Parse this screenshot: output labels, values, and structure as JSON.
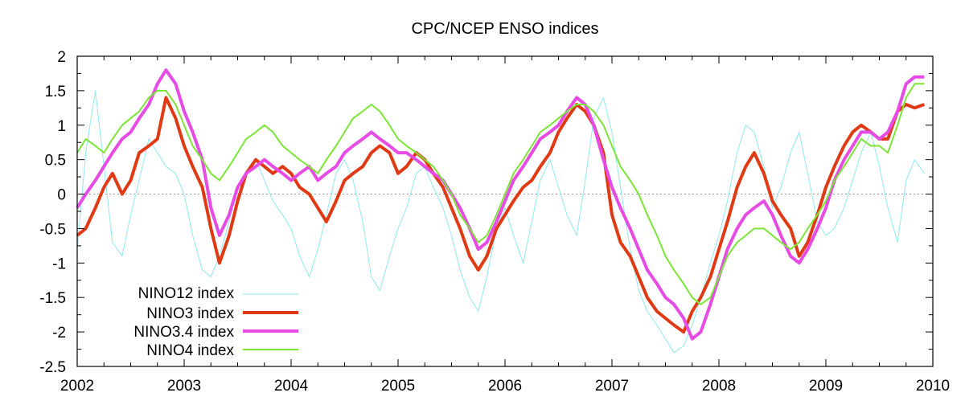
{
  "chart_data": {
    "type": "line",
    "title": "CPC/NCEP ENSO indices",
    "xlabel": "",
    "ylabel": "",
    "xlim": [
      2002.0,
      2010.0
    ],
    "ylim": [
      -2.5,
      2.0
    ],
    "x_ticks": [
      "2002",
      "2003",
      "2004",
      "2005",
      "2006",
      "2007",
      "2008",
      "2009",
      "2010"
    ],
    "y_ticks": [
      "2",
      "1.5",
      "1",
      "0.5",
      "0",
      "-0.5",
      "-1",
      "-1.5",
      "-2",
      "-2.5"
    ],
    "zero_line": true,
    "legend_position": "bottom-left",
    "series": [
      {
        "name": "NINO12 index",
        "color": "#8fe8ee",
        "x": [
          2002.0,
          2002.08,
          2002.17,
          2002.25,
          2002.33,
          2002.42,
          2002.5,
          2002.58,
          2002.67,
          2002.75,
          2002.83,
          2002.92,
          2003.0,
          2003.08,
          2003.17,
          2003.25,
          2003.33,
          2003.42,
          2003.5,
          2003.58,
          2003.67,
          2003.75,
          2003.83,
          2003.92,
          2004.0,
          2004.08,
          2004.17,
          2004.25,
          2004.33,
          2004.42,
          2004.5,
          2004.58,
          2004.67,
          2004.75,
          2004.83,
          2004.92,
          2005.0,
          2005.08,
          2005.17,
          2005.25,
          2005.33,
          2005.42,
          2005.5,
          2005.58,
          2005.67,
          2005.75,
          2005.83,
          2005.92,
          2006.0,
          2006.08,
          2006.17,
          2006.25,
          2006.33,
          2006.42,
          2006.5,
          2006.58,
          2006.67,
          2006.75,
          2006.83,
          2006.92,
          2007.0,
          2007.08,
          2007.17,
          2007.25,
          2007.33,
          2007.42,
          2007.5,
          2007.58,
          2007.67,
          2007.75,
          2007.83,
          2007.92,
          2008.0,
          2008.08,
          2008.17,
          2008.25,
          2008.33,
          2008.42,
          2008.5,
          2008.58,
          2008.67,
          2008.75,
          2008.83,
          2008.92,
          2009.0,
          2009.08,
          2009.17,
          2009.25,
          2009.33,
          2009.42,
          2009.5,
          2009.58,
          2009.67,
          2009.75,
          2009.83,
          2009.92
        ],
        "values": [
          -0.8,
          0.6,
          1.5,
          0.4,
          -0.7,
          -0.9,
          -0.3,
          0.2,
          0.8,
          0.6,
          0.4,
          0.3,
          0.0,
          -0.6,
          -1.1,
          -1.2,
          -0.9,
          -0.4,
          0.1,
          0.3,
          0.5,
          0.2,
          -0.1,
          -0.3,
          -0.5,
          -0.9,
          -1.2,
          -0.8,
          -0.3,
          0.3,
          0.5,
          0.2,
          -0.4,
          -1.2,
          -1.4,
          -0.9,
          -0.5,
          -0.2,
          0.3,
          0.4,
          0.1,
          -0.2,
          -0.6,
          -1.1,
          -1.5,
          -1.7,
          -1.2,
          -0.5,
          -0.2,
          -0.6,
          -1.0,
          -0.4,
          0.2,
          0.5,
          0.1,
          -0.3,
          -0.6,
          0.2,
          1.1,
          1.4,
          0.9,
          0.1,
          -0.8,
          -1.4,
          -1.7,
          -1.9,
          -2.1,
          -2.3,
          -2.2,
          -1.9,
          -1.5,
          -1.0,
          -0.6,
          -0.1,
          0.6,
          1.0,
          0.9,
          0.4,
          -0.2,
          0.1,
          0.6,
          0.9,
          0.3,
          -0.4,
          -0.6,
          -0.5,
          -0.2,
          0.2,
          0.6,
          0.9,
          0.4,
          -0.2,
          -0.7,
          0.2,
          0.5,
          0.3
        ]
      },
      {
        "name": "NINO3 index",
        "color": "#e03a14",
        "x": [
          2002.0,
          2002.08,
          2002.17,
          2002.25,
          2002.33,
          2002.42,
          2002.5,
          2002.58,
          2002.67,
          2002.75,
          2002.83,
          2002.92,
          2003.0,
          2003.08,
          2003.17,
          2003.25,
          2003.33,
          2003.42,
          2003.5,
          2003.58,
          2003.67,
          2003.75,
          2003.83,
          2003.92,
          2004.0,
          2004.08,
          2004.17,
          2004.25,
          2004.33,
          2004.42,
          2004.5,
          2004.58,
          2004.67,
          2004.75,
          2004.83,
          2004.92,
          2005.0,
          2005.08,
          2005.17,
          2005.25,
          2005.33,
          2005.42,
          2005.5,
          2005.58,
          2005.67,
          2005.75,
          2005.83,
          2005.92,
          2006.0,
          2006.08,
          2006.17,
          2006.25,
          2006.33,
          2006.42,
          2006.5,
          2006.58,
          2006.67,
          2006.75,
          2006.83,
          2006.92,
          2007.0,
          2007.08,
          2007.17,
          2007.25,
          2007.33,
          2007.42,
          2007.5,
          2007.58,
          2007.67,
          2007.75,
          2007.83,
          2007.92,
          2008.0,
          2008.08,
          2008.17,
          2008.25,
          2008.33,
          2008.42,
          2008.5,
          2008.58,
          2008.67,
          2008.75,
          2008.83,
          2008.92,
          2009.0,
          2009.08,
          2009.17,
          2009.25,
          2009.33,
          2009.42,
          2009.5,
          2009.58,
          2009.67,
          2009.75,
          2009.83,
          2009.92
        ],
        "values": [
          -0.6,
          -0.5,
          -0.2,
          0.1,
          0.3,
          0.0,
          0.2,
          0.6,
          0.7,
          0.8,
          1.4,
          1.1,
          0.7,
          0.4,
          0.1,
          -0.5,
          -1.0,
          -0.6,
          -0.1,
          0.3,
          0.5,
          0.4,
          0.3,
          0.4,
          0.3,
          0.1,
          0.0,
          -0.2,
          -0.4,
          -0.1,
          0.2,
          0.3,
          0.4,
          0.6,
          0.7,
          0.6,
          0.3,
          0.4,
          0.6,
          0.5,
          0.3,
          0.1,
          -0.2,
          -0.5,
          -0.9,
          -1.1,
          -0.9,
          -0.5,
          -0.3,
          -0.1,
          0.1,
          0.2,
          0.4,
          0.6,
          0.9,
          1.1,
          1.3,
          1.2,
          1.0,
          0.6,
          -0.3,
          -0.7,
          -0.9,
          -1.2,
          -1.5,
          -1.7,
          -1.8,
          -1.9,
          -2.0,
          -1.7,
          -1.5,
          -1.2,
          -0.8,
          -0.4,
          0.1,
          0.4,
          0.6,
          0.3,
          -0.1,
          -0.3,
          -0.5,
          -0.9,
          -0.7,
          -0.3,
          0.1,
          0.4,
          0.7,
          0.9,
          1.0,
          0.9,
          0.8,
          0.8,
          1.2,
          1.3,
          1.25,
          1.3
        ]
      },
      {
        "name": "NINO3.4 index",
        "color": "#e64be3",
        "x": [
          2002.0,
          2002.08,
          2002.17,
          2002.25,
          2002.33,
          2002.42,
          2002.5,
          2002.58,
          2002.67,
          2002.75,
          2002.83,
          2002.92,
          2003.0,
          2003.08,
          2003.17,
          2003.25,
          2003.33,
          2003.42,
          2003.5,
          2003.58,
          2003.67,
          2003.75,
          2003.83,
          2003.92,
          2004.0,
          2004.08,
          2004.17,
          2004.25,
          2004.33,
          2004.42,
          2004.5,
          2004.58,
          2004.67,
          2004.75,
          2004.83,
          2004.92,
          2005.0,
          2005.08,
          2005.17,
          2005.25,
          2005.33,
          2005.42,
          2005.5,
          2005.58,
          2005.67,
          2005.75,
          2005.83,
          2005.92,
          2006.0,
          2006.08,
          2006.17,
          2006.25,
          2006.33,
          2006.42,
          2006.5,
          2006.58,
          2006.67,
          2006.75,
          2006.83,
          2006.92,
          2007.0,
          2007.08,
          2007.17,
          2007.25,
          2007.33,
          2007.42,
          2007.5,
          2007.58,
          2007.67,
          2007.75,
          2007.83,
          2007.92,
          2008.0,
          2008.08,
          2008.17,
          2008.25,
          2008.33,
          2008.42,
          2008.5,
          2008.58,
          2008.67,
          2008.75,
          2008.83,
          2008.92,
          2009.0,
          2009.08,
          2009.17,
          2009.25,
          2009.33,
          2009.42,
          2009.5,
          2009.58,
          2009.67,
          2009.75,
          2009.83,
          2009.92
        ],
        "values": [
          -0.2,
          0.0,
          0.2,
          0.4,
          0.6,
          0.8,
          0.9,
          1.1,
          1.3,
          1.6,
          1.8,
          1.6,
          1.2,
          0.9,
          0.5,
          -0.2,
          -0.6,
          -0.3,
          0.1,
          0.3,
          0.4,
          0.5,
          0.4,
          0.3,
          0.2,
          0.3,
          0.4,
          0.2,
          0.3,
          0.4,
          0.6,
          0.7,
          0.8,
          0.9,
          0.8,
          0.7,
          0.6,
          0.6,
          0.5,
          0.4,
          0.3,
          0.2,
          0.0,
          -0.2,
          -0.5,
          -0.8,
          -0.7,
          -0.4,
          -0.1,
          0.2,
          0.4,
          0.6,
          0.8,
          0.9,
          1.0,
          1.2,
          1.4,
          1.3,
          1.0,
          0.5,
          0.1,
          -0.2,
          -0.5,
          -0.8,
          -1.1,
          -1.3,
          -1.5,
          -1.6,
          -1.8,
          -2.1,
          -2.0,
          -1.6,
          -1.2,
          -0.8,
          -0.5,
          -0.3,
          -0.2,
          -0.1,
          -0.3,
          -0.6,
          -0.9,
          -1.0,
          -0.8,
          -0.5,
          -0.2,
          0.2,
          0.5,
          0.7,
          0.9,
          0.9,
          0.8,
          0.9,
          1.2,
          1.6,
          1.7,
          1.7
        ]
      },
      {
        "name": "NINO4 index",
        "color": "#7be536",
        "x": [
          2002.0,
          2002.08,
          2002.17,
          2002.25,
          2002.33,
          2002.42,
          2002.5,
          2002.58,
          2002.67,
          2002.75,
          2002.83,
          2002.92,
          2003.0,
          2003.08,
          2003.17,
          2003.25,
          2003.33,
          2003.42,
          2003.5,
          2003.58,
          2003.67,
          2003.75,
          2003.83,
          2003.92,
          2004.0,
          2004.08,
          2004.17,
          2004.25,
          2004.33,
          2004.42,
          2004.5,
          2004.58,
          2004.67,
          2004.75,
          2004.83,
          2004.92,
          2005.0,
          2005.08,
          2005.17,
          2005.25,
          2005.33,
          2005.42,
          2005.5,
          2005.58,
          2005.67,
          2005.75,
          2005.83,
          2005.92,
          2006.0,
          2006.08,
          2006.17,
          2006.25,
          2006.33,
          2006.42,
          2006.5,
          2006.58,
          2006.67,
          2006.75,
          2006.83,
          2006.92,
          2007.0,
          2007.08,
          2007.17,
          2007.25,
          2007.33,
          2007.42,
          2007.5,
          2007.58,
          2007.67,
          2007.75,
          2007.83,
          2007.92,
          2008.0,
          2008.08,
          2008.17,
          2008.25,
          2008.33,
          2008.42,
          2008.5,
          2008.58,
          2008.67,
          2008.75,
          2008.83,
          2008.92,
          2009.0,
          2009.08,
          2009.17,
          2009.25,
          2009.33,
          2009.42,
          2009.5,
          2009.58,
          2009.67,
          2009.75,
          2009.83,
          2009.92
        ],
        "values": [
          0.6,
          0.8,
          0.7,
          0.6,
          0.8,
          1.0,
          1.1,
          1.2,
          1.4,
          1.5,
          1.5,
          1.3,
          1.0,
          0.7,
          0.5,
          0.3,
          0.2,
          0.4,
          0.6,
          0.8,
          0.9,
          1.0,
          0.9,
          0.7,
          0.6,
          0.5,
          0.4,
          0.3,
          0.5,
          0.7,
          0.9,
          1.1,
          1.2,
          1.3,
          1.2,
          1.0,
          0.8,
          0.7,
          0.6,
          0.5,
          0.4,
          0.2,
          0.0,
          -0.3,
          -0.5,
          -0.7,
          -0.6,
          -0.3,
          0.0,
          0.3,
          0.5,
          0.7,
          0.9,
          1.0,
          1.1,
          1.2,
          1.3,
          1.3,
          1.2,
          1.0,
          0.7,
          0.4,
          0.2,
          0.0,
          -0.3,
          -0.6,
          -0.9,
          -1.1,
          -1.3,
          -1.5,
          -1.6,
          -1.5,
          -1.2,
          -0.9,
          -0.7,
          -0.6,
          -0.5,
          -0.5,
          -0.6,
          -0.7,
          -0.8,
          -0.7,
          -0.5,
          -0.3,
          -0.1,
          0.2,
          0.4,
          0.6,
          0.8,
          0.7,
          0.7,
          0.6,
          1.0,
          1.4,
          1.6,
          1.6
        ]
      }
    ]
  }
}
